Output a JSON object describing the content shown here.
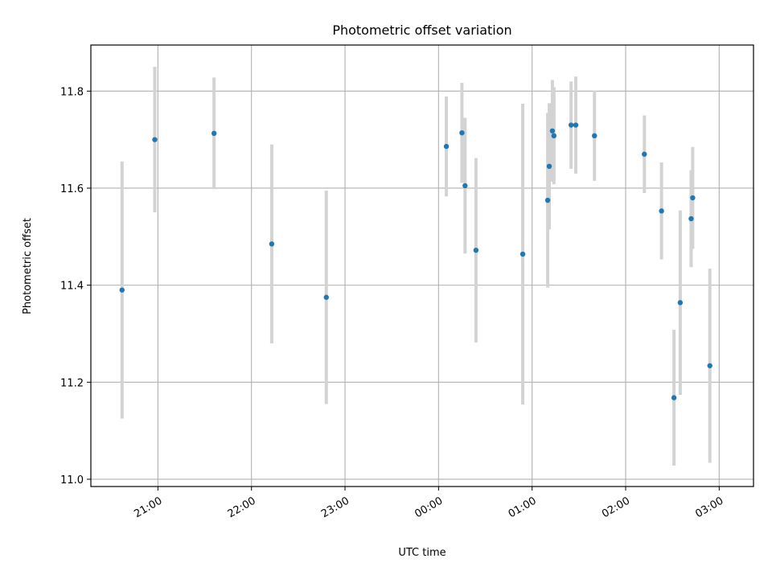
{
  "chart_data": {
    "type": "scatter",
    "title": "Photometric offset variation",
    "xlabel": "UTC time",
    "ylabel": "Photometric offset",
    "x_axis_kind": "time",
    "ylim": [
      10.985,
      11.895
    ],
    "xlim": [
      "20:17",
      "03:22"
    ],
    "grid": true,
    "x_ticks": [
      {
        "time": "21:00",
        "label": "21:00"
      },
      {
        "time": "22:00",
        "label": "22:00"
      },
      {
        "time": "23:00",
        "label": "23:00"
      },
      {
        "time": "00:00",
        "label": "00:00"
      },
      {
        "time": "01:00",
        "label": "01:00"
      },
      {
        "time": "02:00",
        "label": "02:00"
      },
      {
        "time": "03:00",
        "label": "03:00"
      }
    ],
    "y_ticks": [
      {
        "value": 11.0,
        "label": "11.0"
      },
      {
        "value": 11.2,
        "label": "11.2"
      },
      {
        "value": 11.4,
        "label": "11.4"
      },
      {
        "value": 11.6,
        "label": "11.6"
      },
      {
        "value": 11.8,
        "label": "11.8"
      }
    ],
    "series": [
      {
        "marker_color": "#1f77b4",
        "errorbar_color": "#d3d3d3",
        "points": [
          {
            "time": "20:37",
            "y": 11.39,
            "err": 0.265
          },
          {
            "time": "20:58",
            "y": 11.7,
            "err": 0.15
          },
          {
            "time": "21:36",
            "y": 11.713,
            "err": 0.115
          },
          {
            "time": "22:13",
            "y": 11.485,
            "err": 0.205
          },
          {
            "time": "22:48",
            "y": 11.375,
            "err": 0.22
          },
          {
            "time": "00:05",
            "y": 11.686,
            "err": 0.103
          },
          {
            "time": "00:15",
            "y": 11.714,
            "err": 0.103
          },
          {
            "time": "00:17",
            "y": 11.605,
            "err": 0.14
          },
          {
            "time": "00:24",
            "y": 11.472,
            "err": 0.19
          },
          {
            "time": "00:54",
            "y": 11.464,
            "err": 0.31
          },
          {
            "time": "01:10",
            "y": 11.575,
            "err": 0.18
          },
          {
            "time": "01:11",
            "y": 11.645,
            "err": 0.13
          },
          {
            "time": "01:13",
            "y": 11.718,
            "err": 0.105
          },
          {
            "time": "01:14",
            "y": 11.708,
            "err": 0.1
          },
          {
            "time": "01:25",
            "y": 11.73,
            "err": 0.09
          },
          {
            "time": "01:28",
            "y": 11.73,
            "err": 0.1
          },
          {
            "time": "01:40",
            "y": 11.708,
            "err": 0.093
          },
          {
            "time": "02:12",
            "y": 11.67,
            "err": 0.08
          },
          {
            "time": "02:23",
            "y": 11.553,
            "err": 0.1
          },
          {
            "time": "02:31",
            "y": 11.168,
            "err": 0.14
          },
          {
            "time": "02:35",
            "y": 11.364,
            "err": 0.19
          },
          {
            "time": "02:42",
            "y": 11.537,
            "err": 0.1
          },
          {
            "time": "02:43",
            "y": 11.58,
            "err": 0.105
          },
          {
            "time": "02:54",
            "y": 11.234,
            "err": 0.2
          }
        ]
      }
    ]
  }
}
